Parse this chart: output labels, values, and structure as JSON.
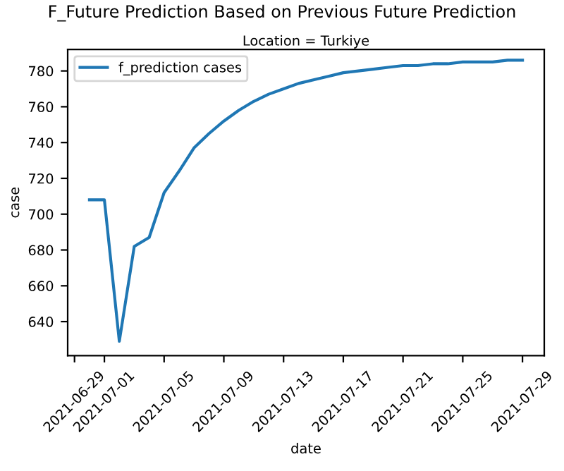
{
  "chart_data": {
    "type": "line",
    "title": "F_Future Prediction Based on Previous Future Prediction",
    "subtitle": "Location = Turkiye",
    "xlabel": "date",
    "ylabel": "case",
    "x": [
      "2021-06-30",
      "2021-07-01",
      "2021-07-02",
      "2021-07-03",
      "2021-07-04",
      "2021-07-05",
      "2021-07-06",
      "2021-07-07",
      "2021-07-08",
      "2021-07-09",
      "2021-07-10",
      "2021-07-11",
      "2021-07-12",
      "2021-07-13",
      "2021-07-14",
      "2021-07-15",
      "2021-07-16",
      "2021-07-17",
      "2021-07-18",
      "2021-07-19",
      "2021-07-20",
      "2021-07-21",
      "2021-07-22",
      "2021-07-23",
      "2021-07-24",
      "2021-07-25",
      "2021-07-26",
      "2021-07-27",
      "2021-07-28",
      "2021-07-29"
    ],
    "series": [
      {
        "name": "f_prediction cases",
        "color": "#1f77b4",
        "values": [
          708,
          708,
          629,
          682,
          687,
          712,
          724,
          737,
          745,
          752,
          758,
          763,
          767,
          770,
          773,
          775,
          777,
          779,
          780,
          781,
          782,
          783,
          783,
          784,
          784,
          785,
          785,
          785,
          786,
          786
        ]
      }
    ],
    "xlim": [
      "2021-06-28T13:00",
      "2021-07-30T11:00"
    ],
    "xticks": [
      "2021-06-29",
      "2021-07-01",
      "2021-07-05",
      "2021-07-09",
      "2021-07-13",
      "2021-07-17",
      "2021-07-21",
      "2021-07-25",
      "2021-07-29"
    ],
    "ylim": [
      621,
      792
    ],
    "yticks": [
      640,
      660,
      680,
      700,
      720,
      740,
      760,
      780
    ],
    "legend": "top left",
    "grid": false,
    "line_style": "solid"
  }
}
